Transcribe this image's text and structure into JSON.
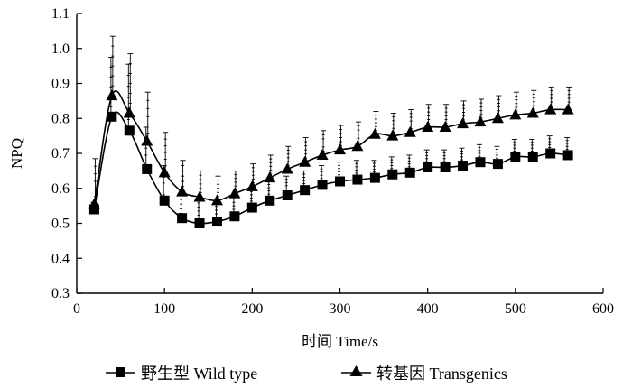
{
  "chart_data": {
    "type": "line",
    "xlabel": "时间 Time/s",
    "ylabel": "NPQ",
    "xlim": [
      0,
      600
    ],
    "ylim": [
      0.3,
      1.1
    ],
    "xticks": [
      0,
      100,
      200,
      300,
      400,
      500,
      600
    ],
    "yticks": [
      0.3,
      0.4,
      0.5,
      0.6,
      0.7,
      0.8,
      0.9,
      1.0,
      1.1
    ],
    "xtick_labels": [
      "0",
      "100",
      "200",
      "300",
      "400",
      "500",
      "600"
    ],
    "ytick_labels": [
      "0.3",
      "0.4",
      "0.5",
      "0.6",
      "0.7",
      "0.8",
      "0.9",
      "1.0",
      "1.1"
    ],
    "grid": false,
    "legend_position": "bottom",
    "x": [
      20,
      40,
      60,
      80,
      100,
      120,
      140,
      160,
      180,
      200,
      220,
      240,
      260,
      280,
      300,
      320,
      340,
      360,
      380,
      400,
      420,
      440,
      460,
      480,
      500,
      520,
      540,
      560
    ],
    "series": [
      {
        "name": "野生型  Wild type",
        "marker": "square",
        "values": [
          0.54,
          0.805,
          0.765,
          0.655,
          0.565,
          0.515,
          0.5,
          0.505,
          0.52,
          0.545,
          0.565,
          0.58,
          0.595,
          0.61,
          0.62,
          0.625,
          0.63,
          0.64,
          0.645,
          0.66,
          0.66,
          0.665,
          0.675,
          0.67,
          0.69,
          0.69,
          0.7,
          0.695
        ],
        "errors": [
          0.02,
          0.17,
          0.19,
          0.12,
          0.1,
          0.08,
          0.07,
          0.065,
          0.06,
          0.055,
          0.055,
          0.055,
          0.055,
          0.055,
          0.055,
          0.055,
          0.05,
          0.05,
          0.05,
          0.05,
          0.05,
          0.05,
          0.05,
          0.05,
          0.05,
          0.05,
          0.05,
          0.05
        ]
      },
      {
        "name": "转基因  Transgenics",
        "marker": "triangle",
        "values": [
          0.555,
          0.865,
          0.815,
          0.735,
          0.645,
          0.59,
          0.575,
          0.565,
          0.585,
          0.605,
          0.63,
          0.655,
          0.675,
          0.695,
          0.71,
          0.72,
          0.755,
          0.75,
          0.76,
          0.775,
          0.775,
          0.785,
          0.79,
          0.8,
          0.81,
          0.815,
          0.825,
          0.825
        ]
      }
    ],
    "transgenic_errors": [
      0.13,
      0.17,
      0.17,
      0.14,
      0.115,
      0.09,
      0.075,
      0.07,
      0.065,
      0.065,
      0.065,
      0.065,
      0.07,
      0.07,
      0.07,
      0.07,
      0.065,
      0.065,
      0.065,
      0.065,
      0.065,
      0.065,
      0.065,
      0.065,
      0.065,
      0.065,
      0.065,
      0.065
    ]
  }
}
